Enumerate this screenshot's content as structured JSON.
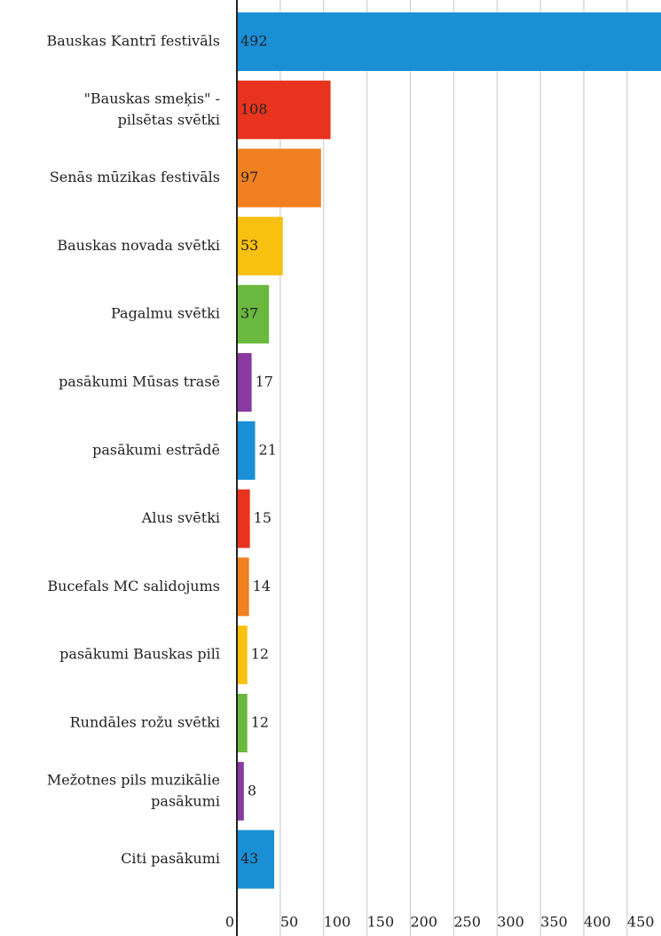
{
  "chart_data": {
    "type": "bar",
    "orientation": "horizontal",
    "categories": [
      [
        "Bauskas Kantrī festivāls"
      ],
      [
        "\"Bauskas smeķis\" -",
        "pilsētas svētki"
      ],
      [
        "Senās mūzikas festivāls"
      ],
      [
        "Bauskas novada svētki"
      ],
      [
        "Pagalmu svētki"
      ],
      [
        "pasākumi Mūsas trasē"
      ],
      [
        "pasākumi estrādē"
      ],
      [
        "Alus svētki"
      ],
      [
        "Bucefals MC salidojums"
      ],
      [
        "pasākumi Bauskas pilī"
      ],
      [
        "Rundāles rožu svētki"
      ],
      [
        "Mežotnes pils muzikālie",
        "pasākumi"
      ],
      [
        "Citi pasākumi"
      ]
    ],
    "values": [
      492,
      108,
      97,
      53,
      37,
      17,
      21,
      15,
      14,
      12,
      12,
      8,
      43
    ],
    "colors": [
      "#1a8fd6",
      "#e8341f",
      "#f08020",
      "#f8c010",
      "#6ab83e",
      "#8a3aa0",
      "#1a8fd6",
      "#e8341f",
      "#f08020",
      "#f8c010",
      "#6ab83e",
      "#8a3aa0",
      "#1a8fd6"
    ],
    "xlim": [
      0,
      490
    ],
    "xticks": [
      0,
      50,
      100,
      150,
      200,
      250,
      300,
      350,
      400,
      450
    ],
    "grid": true
  }
}
